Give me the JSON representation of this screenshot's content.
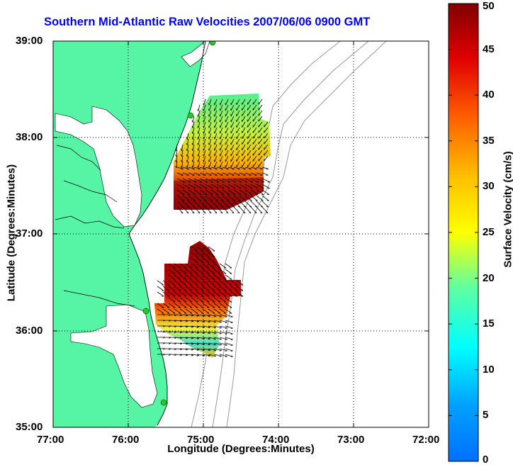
{
  "title": "Southern Mid-Atlantic Raw Velocities 2007/06/06 0900 GMT",
  "xlabel": "Longitude (Degrees:Minutes)",
  "ylabel": "Latitude (Degrees:Minutes)",
  "colorbar": {
    "label": "Surface Velocity (cm/s)",
    "ticks": [
      "50",
      "45",
      "40",
      "35",
      "30",
      "25",
      "20",
      "15",
      "10",
      "5",
      "0"
    ]
  },
  "map": {
    "x_ticks": [
      "77:00",
      "76:00",
      "75:00",
      "74:00",
      "73:00",
      "72:00"
    ],
    "y_ticks": [
      "39:00",
      "38:00",
      "37:00",
      "36:00",
      "35:00"
    ],
    "lon_range": [
      -77,
      -72
    ],
    "lat_range": [
      35,
      39
    ],
    "land_color": "#55f5a5",
    "water_color": "#ffffff",
    "isobath_color": "#999999",
    "site_color": "#22cc22"
  },
  "chart_data": {
    "type": "heatmap",
    "title": "Southern Mid-Atlantic Raw Velocities 2007/06/06 0900 GMT",
    "xlabel": "Longitude (Degrees:Minutes)",
    "ylabel": "Latitude (Degrees:Minutes)",
    "colorbar_label": "Surface Velocity (cm/s)",
    "clim": [
      0,
      50
    ],
    "colormap": "jet",
    "regions": [
      {
        "name": "north",
        "approx_speed_range_cm_s": [
          15,
          50
        ]
      },
      {
        "name": "south",
        "approx_speed_range_cm_s": [
          10,
          50
        ]
      }
    ]
  }
}
